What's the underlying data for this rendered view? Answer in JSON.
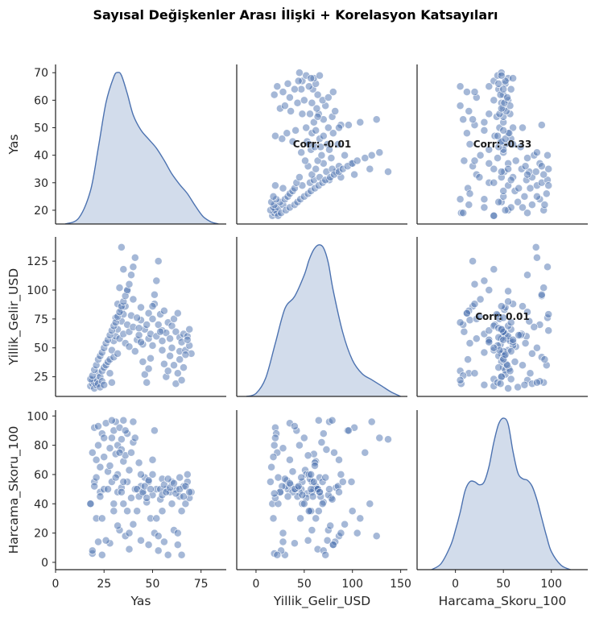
{
  "chart_data": {
    "type": "scatter",
    "title": "Sayısal Değişkenler Arası İlişki + Korelasyon Katsayıları",
    "variables": [
      "Yas",
      "Yillik_Gelir_USD",
      "Harcama_Skoru_100"
    ],
    "axis_ranges": {
      "Yas": [
        0,
        88
      ],
      "Yillik_Gelir_USD": [
        -20,
        157
      ],
      "Harcama_Skoru_100": [
        -40,
        138
      ]
    },
    "row_ranges": {
      "Yas": [
        15,
        73
      ],
      "Yillik_Gelir_USD": [
        8,
        146
      ],
      "Harcama_Skoru_100": [
        -5,
        104
      ]
    },
    "x_ticks": {
      "Yas": [
        0,
        25,
        50,
        75
      ],
      "Yillik_Gelir_USD": [
        0,
        50,
        100,
        150
      ],
      "Harcama_Skoru_100": [
        0,
        50,
        100
      ]
    },
    "y_ticks": {
      "Yas": [
        20,
        30,
        40,
        50,
        60,
        70
      ],
      "Yillik_Gelir_USD": [
        25,
        50,
        75,
        100,
        125
      ],
      "Harcama_Skoru_100": [
        0,
        20,
        40,
        60,
        80,
        100
      ]
    },
    "correlations": [
      {
        "row": "Yas",
        "col": "Yillik_Gelir_USD",
        "label": "Corr: -0.01"
      },
      {
        "row": "Yas",
        "col": "Harcama_Skoru_100",
        "label": "Corr: -0.33"
      },
      {
        "row": "Yillik_Gelir_USD",
        "col": "Harcama_Skoru_100",
        "label": "Corr: 0.01"
      }
    ],
    "kde": {
      "Yas": {
        "x": [
          5,
          12,
          18,
          22,
          26,
          30,
          32,
          34,
          37,
          40,
          44,
          48,
          52,
          56,
          60,
          64,
          68,
          72,
          76,
          80,
          84
        ],
        "density": [
          0.0,
          0.04,
          0.22,
          0.5,
          0.8,
          0.97,
          1.0,
          0.98,
          0.86,
          0.72,
          0.62,
          0.56,
          0.5,
          0.42,
          0.33,
          0.26,
          0.2,
          0.12,
          0.05,
          0.015,
          0.0
        ]
      },
      "Yillik_Gelir_USD": {
        "x": [
          -10,
          0,
          10,
          20,
          30,
          40,
          50,
          55,
          60,
          65,
          70,
          75,
          80,
          90,
          100,
          110,
          120,
          130,
          140,
          150
        ],
        "density": [
          0.0,
          0.02,
          0.12,
          0.35,
          0.58,
          0.66,
          0.8,
          0.9,
          0.97,
          1.0,
          0.98,
          0.88,
          0.7,
          0.42,
          0.24,
          0.15,
          0.11,
          0.07,
          0.03,
          0.0
        ]
      },
      "Harcama_Skoru_100": {
        "x": [
          -25,
          -15,
          -5,
          0,
          5,
          10,
          15,
          20,
          25,
          30,
          35,
          40,
          45,
          50,
          55,
          60,
          65,
          70,
          75,
          80,
          85,
          90,
          95,
          100,
          110,
          120
        ],
        "density": [
          0.0,
          0.04,
          0.16,
          0.26,
          0.38,
          0.52,
          0.58,
          0.58,
          0.56,
          0.58,
          0.68,
          0.84,
          0.96,
          1.0,
          0.96,
          0.78,
          0.64,
          0.6,
          0.59,
          0.55,
          0.46,
          0.34,
          0.22,
          0.12,
          0.03,
          0.0
        ]
      }
    },
    "records": [
      [
        18,
        17,
        40
      ],
      [
        19,
        19,
        6
      ],
      [
        19,
        22,
        75
      ],
      [
        20,
        15,
        55
      ],
      [
        20,
        20,
        92
      ],
      [
        21,
        18,
        30
      ],
      [
        21,
        23,
        58
      ],
      [
        22,
        19,
        80
      ],
      [
        22,
        28,
        14
      ],
      [
        23,
        16,
        65
      ],
      [
        23,
        25,
        48
      ],
      [
        24,
        21,
        88
      ],
      [
        24,
        30,
        5
      ],
      [
        25,
        18,
        72
      ],
      [
        25,
        33,
        50
      ],
      [
        26,
        35,
        95
      ],
      [
        27,
        38,
        62
      ],
      [
        28,
        28,
        78
      ],
      [
        28,
        40,
        13
      ],
      [
        29,
        20,
        85
      ],
      [
        29,
        48,
        55
      ],
      [
        30,
        42,
        90
      ],
      [
        30,
        56,
        35
      ],
      [
        31,
        60,
        74
      ],
      [
        31,
        76,
        96
      ],
      [
        32,
        45,
        80
      ],
      [
        32,
        66,
        48
      ],
      [
        32,
        88,
        60
      ],
      [
        33,
        102,
        92
      ],
      [
        33,
        58,
        22
      ],
      [
        34,
        73,
        77
      ],
      [
        34,
        83,
        51
      ],
      [
        34,
        137,
        84
      ],
      [
        35,
        62,
        69
      ],
      [
        35,
        79,
        97
      ],
      [
        35,
        118,
        40
      ],
      [
        36,
        86,
        18
      ],
      [
        36,
        54,
        73
      ],
      [
        37,
        70,
        88
      ],
      [
        37,
        99,
        55
      ],
      [
        38,
        51,
        63
      ],
      [
        38,
        64,
        9
      ],
      [
        39,
        78,
        44
      ],
      [
        40,
        68,
        82
      ],
      [
        40,
        92,
        26
      ],
      [
        41,
        47,
        50
      ],
      [
        42,
        57,
        35
      ],
      [
        43,
        61,
        68
      ],
      [
        44,
        74,
        15
      ],
      [
        44,
        85,
        52
      ],
      [
        45,
        53,
        47
      ],
      [
        46,
        66,
        58
      ],
      [
        47,
        70,
        41
      ],
      [
        48,
        80,
        12
      ],
      [
        48,
        58,
        55
      ],
      [
        49,
        62,
        30
      ],
      [
        50,
        75,
        46
      ],
      [
        50,
        52,
        60
      ],
      [
        51,
        88,
        20
      ],
      [
        52,
        60,
        50
      ],
      [
        53,
        70,
        8
      ],
      [
        54,
        79,
        43
      ],
      [
        55,
        56,
        57
      ],
      [
        55,
        65,
        35
      ],
      [
        56,
        82,
        14
      ],
      [
        57,
        63,
        50
      ],
      [
        58,
        72,
        5
      ],
      [
        59,
        58,
        48
      ],
      [
        60,
        69,
        55
      ],
      [
        61,
        75,
        22
      ],
      [
        62,
        64,
        50
      ],
      [
        63,
        80,
        12
      ],
      [
        64,
        59,
        45
      ],
      [
        64,
        47,
        58
      ],
      [
        65,
        55,
        35
      ],
      [
        66,
        62,
        52
      ],
      [
        67,
        48,
        40
      ],
      [
        68,
        60,
        55
      ],
      [
        69,
        52,
        44
      ],
      [
        70,
        45,
        48
      ],
      [
        18,
        23,
        40
      ],
      [
        19,
        26,
        8
      ],
      [
        20,
        31,
        52
      ],
      [
        21,
        35,
        70
      ],
      [
        22,
        40,
        93
      ],
      [
        23,
        43,
        45
      ],
      [
        24,
        46,
        30
      ],
      [
        25,
        50,
        85
      ],
      [
        26,
        54,
        15
      ],
      [
        27,
        57,
        50
      ],
      [
        28,
        61,
        66
      ],
      [
        29,
        65,
        97
      ],
      [
        30,
        69,
        40
      ],
      [
        31,
        72,
        58
      ],
      [
        32,
        77,
        25
      ],
      [
        33,
        81,
        75
      ],
      [
        34,
        86,
        48
      ],
      [
        35,
        90,
        55
      ],
      [
        36,
        95,
        90
      ],
      [
        37,
        100,
        35
      ],
      [
        38,
        105,
        20
      ],
      [
        39,
        113,
        75
      ],
      [
        40,
        120,
        96
      ],
      [
        41,
        128,
        85
      ],
      [
        42,
        76,
        50
      ],
      [
        43,
        67,
        45
      ],
      [
        44,
        55,
        60
      ],
      [
        45,
        38,
        48
      ],
      [
        46,
        27,
        52
      ],
      [
        47,
        20,
        44
      ],
      [
        48,
        32,
        56
      ],
      [
        49,
        41,
        50
      ],
      [
        50,
        86,
        70
      ],
      [
        51,
        96,
        90
      ],
      [
        52,
        108,
        30
      ],
      [
        53,
        125,
        18
      ],
      [
        54,
        64,
        50
      ],
      [
        55,
        48,
        46
      ],
      [
        56,
        36,
        53
      ],
      [
        57,
        25,
        48
      ],
      [
        58,
        30,
        57
      ],
      [
        59,
        43,
        51
      ],
      [
        60,
        50,
        40
      ],
      [
        61,
        35,
        54
      ],
      [
        62,
        19,
        47
      ],
      [
        63,
        28,
        20
      ],
      [
        64,
        40,
        50
      ],
      [
        65,
        22,
        5
      ],
      [
        66,
        33,
        45
      ],
      [
        67,
        44,
        52
      ],
      [
        68,
        57,
        60
      ],
      [
        69,
        66,
        48
      ]
    ]
  }
}
